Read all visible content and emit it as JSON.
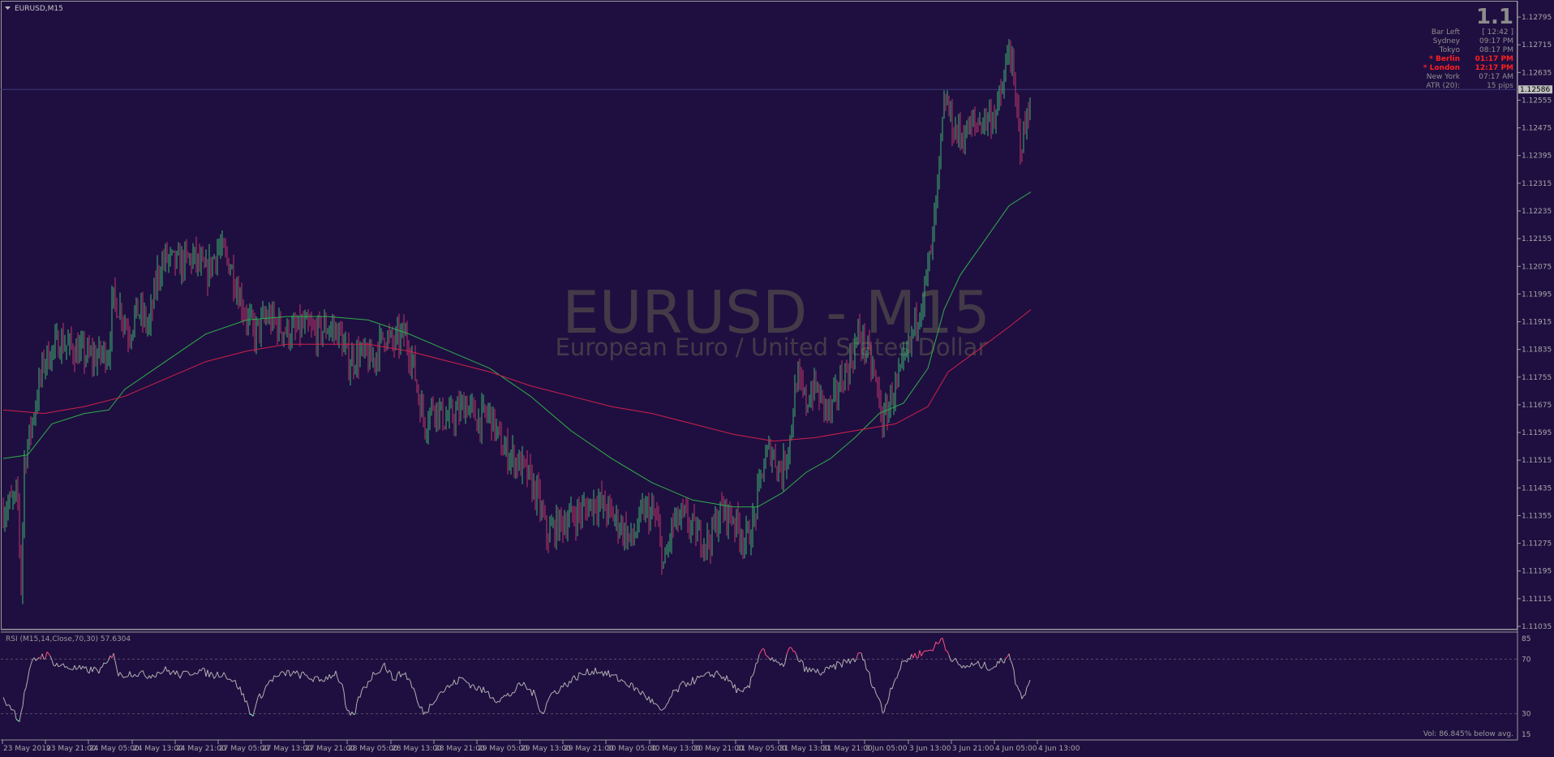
{
  "window": {
    "title": "EURUSD,M15"
  },
  "colors": {
    "background": "#1f0f40",
    "bull_candle": "#3cb371",
    "bear_candle": "#c0346a",
    "ma_fast": "#2eae4a",
    "ma_slow": "#d0204a",
    "rsi_line": "#b0b0b0",
    "rsi_overbought": "#ff5080",
    "rsi_oversold": "#7cffb0",
    "grid_dash": "#5a4a6a",
    "info_red": "#ff2020"
  },
  "watermark": {
    "symbol": "EURUSD - M15",
    "description": "European Euro / United States Dollar"
  },
  "info_panel": {
    "big_value": "1.1",
    "rows": [
      {
        "label": "Bar Left",
        "value": "[ 12:42 ]",
        "highlight": false
      },
      {
        "label": "Sydney",
        "value": "09:17 PM",
        "highlight": false
      },
      {
        "label": "Tokyo",
        "value": "08:17 PM",
        "highlight": false
      },
      {
        "label": "* Berlin",
        "value": "01:17 PM",
        "highlight": true
      },
      {
        "label": "* London",
        "value": "12:17 PM",
        "highlight": true
      },
      {
        "label": "New York",
        "value": "07:17 AM",
        "highlight": false
      },
      {
        "label": "ATR (20):",
        "value": "15 pips",
        "highlight": false
      }
    ]
  },
  "current_price": {
    "label": "1.12586",
    "value": 1.12586
  },
  "rsi": {
    "label": "RSI (M15,14,Close,70,30) 57.6304",
    "levels": [
      85,
      70,
      30,
      15
    ],
    "level_labels": [
      "85",
      "70",
      "30",
      "15"
    ]
  },
  "volume_note": "Vol:  86.845% below avg.",
  "chart_data": {
    "type": "candlestick",
    "symbol": "EURUSD",
    "timeframe": "M15",
    "y_axis_ticks": [
      "1.12795",
      "1.12715",
      "1.12635",
      "1.12555",
      "1.12475",
      "1.12395",
      "1.12315",
      "1.12235",
      "1.12155",
      "1.12075",
      "1.11995",
      "1.11915",
      "1.11835",
      "1.11755",
      "1.11675",
      "1.11595",
      "1.11515",
      "1.11435",
      "1.11355",
      "1.11275",
      "1.11195",
      "1.11115",
      "1.11035"
    ],
    "ylim": [
      1.11035,
      1.12835
    ],
    "x_axis_ticks": [
      "23 May 2019",
      "23 May 21:00",
      "24 May 05:00",
      "24 May 13:00",
      "24 May 21:00",
      "27 May 05:00",
      "27 May 13:00",
      "27 May 21:00",
      "28 May 05:00",
      "28 May 13:00",
      "28 May 21:00",
      "29 May 05:00",
      "29 May 13:00",
      "29 May 21:00",
      "30 May 05:00",
      "30 May 13:00",
      "30 May 21:00",
      "31 May 05:00",
      "31 May 13:00",
      "31 May 21:00",
      "3 Jun 05:00",
      "3 Jun 13:00",
      "3 Jun 21:00",
      "4 Jun 05:00",
      "4 Jun 13:00"
    ],
    "price_path": [
      [
        0,
        1.1137
      ],
      [
        8,
        1.1139
      ],
      [
        18,
        1.114
      ],
      [
        22,
        1.1115
      ],
      [
        26,
        1.1151
      ],
      [
        40,
        1.1168
      ],
      [
        50,
        1.118
      ],
      [
        70,
        1.1186
      ],
      [
        90,
        1.1183
      ],
      [
        110,
        1.1181
      ],
      [
        130,
        1.1183
      ],
      [
        135,
        1.1198
      ],
      [
        145,
        1.1195
      ],
      [
        155,
        1.1188
      ],
      [
        165,
        1.1195
      ],
      [
        180,
        1.119
      ],
      [
        190,
        1.1205
      ],
      [
        200,
        1.121
      ],
      [
        215,
        1.1208
      ],
      [
        235,
        1.121
      ],
      [
        250,
        1.1205
      ],
      [
        265,
        1.1213
      ],
      [
        280,
        1.1208
      ],
      [
        290,
        1.12
      ],
      [
        300,
        1.1193
      ],
      [
        310,
        1.1188
      ],
      [
        325,
        1.1193
      ],
      [
        340,
        1.119
      ],
      [
        355,
        1.1188
      ],
      [
        370,
        1.119
      ],
      [
        385,
        1.1188
      ],
      [
        400,
        1.119
      ],
      [
        415,
        1.1188
      ],
      [
        425,
        1.118
      ],
      [
        440,
        1.1182
      ],
      [
        455,
        1.118
      ],
      [
        470,
        1.1188
      ],
      [
        480,
        1.1185
      ],
      [
        495,
        1.1188
      ],
      [
        505,
        1.118
      ],
      [
        512,
        1.117
      ],
      [
        520,
        1.1162
      ],
      [
        530,
        1.1168
      ],
      [
        545,
        1.1163
      ],
      [
        560,
        1.1165
      ],
      [
        570,
        1.1168
      ],
      [
        585,
        1.1163
      ],
      [
        600,
        1.1165
      ],
      [
        615,
        1.1155
      ],
      [
        630,
        1.1152
      ],
      [
        645,
        1.1148
      ],
      [
        660,
        1.114
      ],
      [
        670,
        1.113
      ],
      [
        685,
        1.1133
      ],
      [
        700,
        1.1135
      ],
      [
        715,
        1.1137
      ],
      [
        730,
        1.114
      ],
      [
        745,
        1.1137
      ],
      [
        760,
        1.1133
      ],
      [
        775,
        1.1128
      ],
      [
        790,
        1.1137
      ],
      [
        805,
        1.1135
      ],
      [
        815,
        1.112
      ],
      [
        825,
        1.1133
      ],
      [
        840,
        1.1135
      ],
      [
        855,
        1.113
      ],
      [
        870,
        1.1128
      ],
      [
        885,
        1.1137
      ],
      [
        900,
        1.1135
      ],
      [
        915,
        1.1128
      ],
      [
        925,
        1.1133
      ],
      [
        935,
        1.1148
      ],
      [
        945,
        1.1155
      ],
      [
        960,
        1.1148
      ],
      [
        970,
        1.1158
      ],
      [
        978,
        1.1175
      ],
      [
        990,
        1.1168
      ],
      [
        1000,
        1.1173
      ],
      [
        1010,
        1.1168
      ],
      [
        1020,
        1.1165
      ],
      [
        1030,
        1.1173
      ],
      [
        1045,
        1.118
      ],
      [
        1055,
        1.1188
      ],
      [
        1065,
        1.1183
      ],
      [
        1075,
        1.1175
      ],
      [
        1085,
        1.1162
      ],
      [
        1095,
        1.117
      ],
      [
        1105,
        1.1175
      ],
      [
        1115,
        1.1182
      ],
      [
        1125,
        1.1192
      ],
      [
        1135,
        1.12
      ],
      [
        1145,
        1.1213
      ],
      [
        1152,
        1.123
      ],
      [
        1158,
        1.1248
      ],
      [
        1162,
        1.1256
      ],
      [
        1170,
        1.1248
      ],
      [
        1180,
        1.1245
      ],
      [
        1195,
        1.1248
      ],
      [
        1210,
        1.125
      ],
      [
        1225,
        1.1252
      ],
      [
        1235,
        1.1262
      ],
      [
        1240,
        1.1272
      ],
      [
        1248,
        1.1255
      ],
      [
        1255,
        1.1242
      ],
      [
        1262,
        1.125
      ],
      [
        1267,
        1.1258
      ]
    ],
    "ma_fast": [
      [
        0,
        1.1152
      ],
      [
        30,
        1.1153
      ],
      [
        60,
        1.1162
      ],
      [
        100,
        1.1165
      ],
      [
        130,
        1.1166
      ],
      [
        150,
        1.1172
      ],
      [
        200,
        1.118
      ],
      [
        250,
        1.1188
      ],
      [
        300,
        1.1192
      ],
      [
        350,
        1.1193
      ],
      [
        400,
        1.1193
      ],
      [
        450,
        1.1192
      ],
      [
        500,
        1.1188
      ],
      [
        550,
        1.1183
      ],
      [
        600,
        1.1178
      ],
      [
        650,
        1.117
      ],
      [
        700,
        1.116
      ],
      [
        750,
        1.1152
      ],
      [
        800,
        1.1145
      ],
      [
        850,
        1.114
      ],
      [
        900,
        1.1138
      ],
      [
        930,
        1.1138
      ],
      [
        960,
        1.1142
      ],
      [
        990,
        1.1148
      ],
      [
        1020,
        1.1152
      ],
      [
        1050,
        1.1158
      ],
      [
        1080,
        1.1165
      ],
      [
        1110,
        1.1168
      ],
      [
        1140,
        1.1178
      ],
      [
        1160,
        1.1195
      ],
      [
        1180,
        1.1205
      ],
      [
        1210,
        1.1215
      ],
      [
        1240,
        1.1225
      ],
      [
        1267,
        1.1229
      ]
    ],
    "ma_slow": [
      [
        0,
        1.1166
      ],
      [
        50,
        1.1165
      ],
      [
        100,
        1.1167
      ],
      [
        150,
        1.117
      ],
      [
        200,
        1.1175
      ],
      [
        250,
        1.118
      ],
      [
        300,
        1.1183
      ],
      [
        350,
        1.1185
      ],
      [
        400,
        1.1185
      ],
      [
        450,
        1.1185
      ],
      [
        500,
        1.1183
      ],
      [
        550,
        1.118
      ],
      [
        600,
        1.1177
      ],
      [
        650,
        1.1173
      ],
      [
        700,
        1.117
      ],
      [
        750,
        1.1167
      ],
      [
        800,
        1.1165
      ],
      [
        850,
        1.1162
      ],
      [
        900,
        1.1159
      ],
      [
        950,
        1.1157
      ],
      [
        1000,
        1.1158
      ],
      [
        1050,
        1.116
      ],
      [
        1100,
        1.1162
      ],
      [
        1140,
        1.1167
      ],
      [
        1165,
        1.1177
      ],
      [
        1200,
        1.1183
      ],
      [
        1240,
        1.119
      ],
      [
        1267,
        1.1195
      ]
    ],
    "rsi_path": [
      [
        0,
        40
      ],
      [
        10,
        35
      ],
      [
        20,
        25
      ],
      [
        28,
        50
      ],
      [
        36,
        68
      ],
      [
        45,
        72
      ],
      [
        55,
        73
      ],
      [
        65,
        66
      ],
      [
        80,
        64
      ],
      [
        100,
        62
      ],
      [
        120,
        62
      ],
      [
        130,
        68
      ],
      [
        136,
        76
      ],
      [
        142,
        58
      ],
      [
        160,
        60
      ],
      [
        180,
        58
      ],
      [
        200,
        62
      ],
      [
        220,
        58
      ],
      [
        240,
        62
      ],
      [
        260,
        58
      ],
      [
        270,
        60
      ],
      [
        280,
        56
      ],
      [
        290,
        50
      ],
      [
        300,
        38
      ],
      [
        306,
        28
      ],
      [
        314,
        40
      ],
      [
        330,
        55
      ],
      [
        350,
        60
      ],
      [
        370,
        58
      ],
      [
        390,
        54
      ],
      [
        410,
        60
      ],
      [
        418,
        50
      ],
      [
        424,
        30
      ],
      [
        432,
        28
      ],
      [
        440,
        44
      ],
      [
        455,
        58
      ],
      [
        470,
        66
      ],
      [
        480,
        56
      ],
      [
        495,
        60
      ],
      [
        505,
        50
      ],
      [
        512,
        36
      ],
      [
        520,
        30
      ],
      [
        535,
        44
      ],
      [
        550,
        50
      ],
      [
        565,
        56
      ],
      [
        580,
        50
      ],
      [
        595,
        46
      ],
      [
        610,
        40
      ],
      [
        625,
        44
      ],
      [
        640,
        52
      ],
      [
        655,
        44
      ],
      [
        665,
        30
      ],
      [
        675,
        44
      ],
      [
        690,
        50
      ],
      [
        710,
        58
      ],
      [
        730,
        62
      ],
      [
        750,
        58
      ],
      [
        770,
        52
      ],
      [
        790,
        44
      ],
      [
        805,
        36
      ],
      [
        812,
        30
      ],
      [
        825,
        44
      ],
      [
        840,
        52
      ],
      [
        860,
        56
      ],
      [
        880,
        60
      ],
      [
        895,
        54
      ],
      [
        910,
        44
      ],
      [
        920,
        50
      ],
      [
        930,
        70
      ],
      [
        935,
        79
      ],
      [
        945,
        70
      ],
      [
        960,
        64
      ],
      [
        970,
        78
      ],
      [
        978,
        72
      ],
      [
        990,
        62
      ],
      [
        1010,
        60
      ],
      [
        1030,
        66
      ],
      [
        1050,
        70
      ],
      [
        1058,
        74
      ],
      [
        1065,
        62
      ],
      [
        1080,
        40
      ],
      [
        1085,
        30
      ],
      [
        1095,
        50
      ],
      [
        1110,
        68
      ],
      [
        1120,
        72
      ],
      [
        1140,
        76
      ],
      [
        1150,
        80
      ],
      [
        1158,
        85
      ],
      [
        1165,
        74
      ],
      [
        1180,
        64
      ],
      [
        1200,
        66
      ],
      [
        1220,
        64
      ],
      [
        1235,
        70
      ],
      [
        1240,
        76
      ],
      [
        1248,
        54
      ],
      [
        1255,
        42
      ],
      [
        1262,
        48
      ],
      [
        1267,
        58
      ]
    ]
  }
}
